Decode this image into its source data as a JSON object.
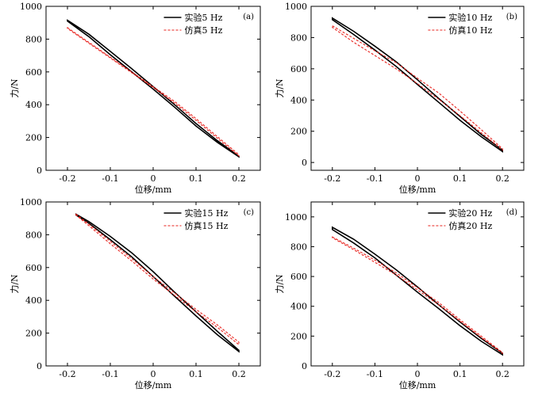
{
  "chart_data": [
    {
      "type": "line",
      "panel_label": "(a)",
      "xlabel": "位移/mm",
      "ylabel": "力/N",
      "xlim": [
        -0.25,
        0.25
      ],
      "ylim": [
        0,
        1000
      ],
      "xticks": [
        -0.2,
        -0.1,
        0,
        0.1,
        0.2
      ],
      "xtick_labels": [
        "-0.2",
        "-0.1",
        "0",
        "0.1",
        "0.2"
      ],
      "yticks": [
        0,
        200,
        400,
        600,
        800,
        1000
      ],
      "ytick_labels": [
        "0",
        "200",
        "400",
        "600",
        "800",
        "1000"
      ],
      "legend_position": "top-right",
      "series": [
        {
          "name": "实验5 Hz",
          "color": "#000000",
          "style": "solid",
          "upper": [
            [
              -0.2,
              915
            ],
            [
              -0.15,
              830
            ],
            [
              -0.1,
              725
            ],
            [
              -0.05,
              620
            ],
            [
              0,
              510
            ],
            [
              0.05,
              400
            ],
            [
              0.1,
              285
            ],
            [
              0.15,
              180
            ],
            [
              0.2,
              85
            ]
          ],
          "lower": [
            [
              -0.2,
              910
            ],
            [
              -0.15,
              815
            ],
            [
              -0.1,
              705
            ],
            [
              -0.05,
              600
            ],
            [
              0,
              495
            ],
            [
              0.05,
              385
            ],
            [
              0.1,
              270
            ],
            [
              0.15,
              170
            ],
            [
              0.2,
              82
            ]
          ]
        },
        {
          "name": "仿真5 Hz",
          "color": "#e8231e",
          "style": "dashed",
          "upper": [
            [
              -0.2,
              870
            ],
            [
              -0.15,
              780
            ],
            [
              -0.1,
              690
            ],
            [
              -0.05,
              600
            ],
            [
              0,
              510
            ],
            [
              0.05,
              420
            ],
            [
              0.1,
              315
            ],
            [
              0.15,
              205
            ],
            [
              0.2,
              95
            ]
          ],
          "lower": [
            [
              -0.2,
              865
            ],
            [
              -0.15,
              775
            ],
            [
              -0.1,
              685
            ],
            [
              -0.05,
              595
            ],
            [
              0,
              505
            ],
            [
              0.05,
              410
            ],
            [
              0.1,
              305
            ],
            [
              0.15,
              195
            ],
            [
              0.2,
              88
            ]
          ]
        }
      ]
    },
    {
      "type": "line",
      "panel_label": "(b)",
      "xlabel": "位移/mm",
      "ylabel": "力/N",
      "xlim": [
        -0.25,
        0.25
      ],
      "ylim": [
        -50,
        1000
      ],
      "xticks": [
        -0.2,
        -0.1,
        0,
        0.1,
        0.2
      ],
      "xtick_labels": [
        "-0.2",
        "-0.1",
        "0",
        "0.1",
        "0.2"
      ],
      "yticks": [
        0,
        200,
        400,
        600,
        800,
        1000
      ],
      "ytick_labels": [
        "0",
        "200",
        "400",
        "600",
        "800",
        "1000"
      ],
      "legend_position": "top-right",
      "series": [
        {
          "name": "实验10 Hz",
          "color": "#000000",
          "style": "solid",
          "upper": [
            [
              -0.2,
              925
            ],
            [
              -0.15,
              840
            ],
            [
              -0.1,
              745
            ],
            [
              -0.05,
              645
            ],
            [
              0,
              530
            ],
            [
              0.05,
              410
            ],
            [
              0.1,
              295
            ],
            [
              0.15,
              180
            ],
            [
              0.2,
              80
            ]
          ],
          "lower": [
            [
              -0.2,
              915
            ],
            [
              -0.15,
              820
            ],
            [
              -0.1,
              720
            ],
            [
              -0.05,
              615
            ],
            [
              0,
              500
            ],
            [
              0.05,
              385
            ],
            [
              0.1,
              270
            ],
            [
              0.15,
              165
            ],
            [
              0.2,
              70
            ]
          ]
        },
        {
          "name": "仿真10 Hz",
          "color": "#e8231e",
          "style": "dashed",
          "upper": [
            [
              -0.2,
              875
            ],
            [
              -0.15,
              795
            ],
            [
              -0.1,
              715
            ],
            [
              -0.05,
              640
            ],
            [
              0,
              540
            ],
            [
              0.05,
              445
            ],
            [
              0.1,
              330
            ],
            [
              0.15,
              210
            ],
            [
              0.2,
              88
            ]
          ],
          "lower": [
            [
              -0.2,
              865
            ],
            [
              -0.15,
              770
            ],
            [
              -0.1,
              685
            ],
            [
              -0.05,
              600
            ],
            [
              0,
              505
            ],
            [
              0.05,
              405
            ],
            [
              0.1,
              300
            ],
            [
              0.15,
              190
            ],
            [
              0.2,
              80
            ]
          ]
        }
      ]
    },
    {
      "type": "line",
      "panel_label": "(c)",
      "xlabel": "位移/mm",
      "ylabel": "力/N",
      "xlim": [
        -0.25,
        0.25
      ],
      "ylim": [
        0,
        1000
      ],
      "xticks": [
        -0.2,
        -0.1,
        0,
        0.1,
        0.2
      ],
      "xtick_labels": [
        "-0.2",
        "-0.1",
        "0",
        "0.1",
        "0.2"
      ],
      "yticks": [
        0,
        200,
        400,
        600,
        800,
        1000
      ],
      "ytick_labels": [
        "0",
        "200",
        "400",
        "600",
        "800",
        "1000"
      ],
      "legend_position": "top-right",
      "series": [
        {
          "name": "实验15 Hz",
          "color": "#000000",
          "style": "solid",
          "upper": [
            [
              -0.18,
              925
            ],
            [
              -0.15,
              880
            ],
            [
              -0.1,
              790
            ],
            [
              -0.05,
              690
            ],
            [
              0,
              575
            ],
            [
              0.05,
              450
            ],
            [
              0.1,
              330
            ],
            [
              0.15,
              210
            ],
            [
              0.2,
              95
            ]
          ],
          "lower": [
            [
              -0.18,
              920
            ],
            [
              -0.15,
              870
            ],
            [
              -0.1,
              770
            ],
            [
              -0.05,
              665
            ],
            [
              0,
              545
            ],
            [
              0.05,
              425
            ],
            [
              0.1,
              305
            ],
            [
              0.15,
              190
            ],
            [
              0.2,
              88
            ]
          ]
        },
        {
          "name": "仿真15 Hz",
          "color": "#e8231e",
          "style": "dashed",
          "upper": [
            [
              -0.18,
              925
            ],
            [
              -0.15,
              865
            ],
            [
              -0.1,
              760
            ],
            [
              -0.05,
              655
            ],
            [
              0,
              545
            ],
            [
              0.05,
              445
            ],
            [
              0.1,
              345
            ],
            [
              0.15,
              250
            ],
            [
              0.2,
              145
            ]
          ],
          "lower": [
            [
              -0.18,
              920
            ],
            [
              -0.15,
              855
            ],
            [
              -0.1,
              745
            ],
            [
              -0.05,
              640
            ],
            [
              0,
              530
            ],
            [
              0.05,
              430
            ],
            [
              0.1,
              330
            ],
            [
              0.15,
              235
            ],
            [
              0.2,
              130
            ]
          ]
        }
      ]
    },
    {
      "type": "line",
      "panel_label": "(d)",
      "xlabel": "位移/mm",
      "ylabel": "力/N",
      "xlim": [
        -0.25,
        0.25
      ],
      "ylim": [
        0,
        1100
      ],
      "xticks": [
        -0.2,
        -0.1,
        0,
        0.1,
        0.2
      ],
      "xtick_labels": [
        "-0.2",
        "-0.1",
        "0",
        "0.1",
        "0.2"
      ],
      "yticks": [
        0,
        200,
        400,
        600,
        800,
        1000
      ],
      "ytick_labels": [
        "0",
        "200",
        "400",
        "600",
        "800",
        "1000"
      ],
      "legend_position": "top-right",
      "series": [
        {
          "name": "实验20 Hz",
          "color": "#000000",
          "style": "solid",
          "upper": [
            [
              -0.2,
              930
            ],
            [
              -0.15,
              850
            ],
            [
              -0.1,
              750
            ],
            [
              -0.05,
              645
            ],
            [
              0,
              530
            ],
            [
              0.05,
              410
            ],
            [
              0.1,
              295
            ],
            [
              0.15,
              185
            ],
            [
              0.2,
              85
            ]
          ],
          "lower": [
            [
              -0.2,
              915
            ],
            [
              -0.15,
              825
            ],
            [
              -0.1,
              725
            ],
            [
              -0.05,
              610
            ],
            [
              0,
              495
            ],
            [
              0.05,
              385
            ],
            [
              0.1,
              270
            ],
            [
              0.15,
              165
            ],
            [
              0.2,
              75
            ]
          ]
        },
        {
          "name": "仿真20 Hz",
          "color": "#e8231e",
          "style": "dashed",
          "upper": [
            [
              -0.2,
              865
            ],
            [
              -0.15,
              790
            ],
            [
              -0.1,
              710
            ],
            [
              -0.05,
              625
            ],
            [
              0,
              525
            ],
            [
              0.05,
              425
            ],
            [
              0.1,
              310
            ],
            [
              0.15,
              200
            ],
            [
              0.2,
              90
            ]
          ],
          "lower": [
            [
              -0.2,
              860
            ],
            [
              -0.15,
              780
            ],
            [
              -0.1,
              695
            ],
            [
              -0.05,
              610
            ],
            [
              0,
              510
            ],
            [
              0.05,
              410
            ],
            [
              0.1,
              300
            ],
            [
              0.15,
              190
            ],
            [
              0.2,
              85
            ]
          ]
        }
      ]
    }
  ]
}
